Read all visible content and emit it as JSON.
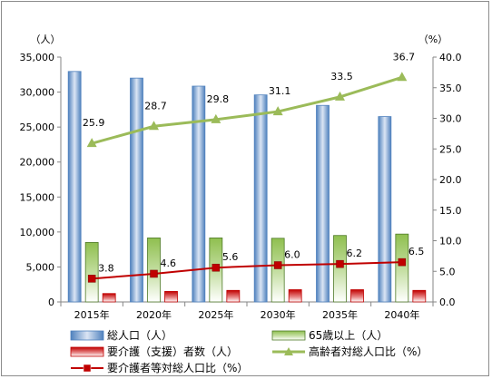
{
  "chart_data": {
    "type": "bar",
    "categories": [
      "2015年",
      "2020年",
      "2025年",
      "2030年",
      "2035年",
      "2040年"
    ],
    "y_left": {
      "unit_label": "（人）",
      "ticks": [
        "0",
        "5,000",
        "10,000",
        "15,000",
        "20,000",
        "25,000",
        "30,000",
        "35,000"
      ],
      "ylim": [
        0,
        35000
      ]
    },
    "y_right": {
      "unit_label": "（%）",
      "ticks": [
        "0.0",
        "5.0",
        "10.0",
        "15.0",
        "20.0",
        "25.0",
        "30.0",
        "35.0",
        "40.0"
      ],
      "ylim": [
        0,
        40
      ]
    },
    "grid": false,
    "legend_position": "bottom",
    "series": [
      {
        "name": "総人口（人）",
        "kind": "bar",
        "axis": "left",
        "color": "#4f81bd",
        "values": [
          32950,
          32000,
          30850,
          29600,
          28100,
          26500
        ]
      },
      {
        "name": "65歳以上（人）",
        "kind": "bar",
        "axis": "left",
        "color": "#9bbb59",
        "values": [
          8500,
          9150,
          9150,
          9100,
          9500,
          9700
        ]
      },
      {
        "name": "要介護（支援）者数（人）",
        "kind": "bar",
        "axis": "left",
        "color": "#c0504d",
        "values": [
          1200,
          1500,
          1650,
          1750,
          1750,
          1650
        ]
      },
      {
        "name": "高齢者対総人口比（%）",
        "kind": "line",
        "marker": "triangle",
        "axis": "right",
        "color": "#9bbb59",
        "values": [
          25.9,
          28.7,
          29.8,
          31.1,
          33.5,
          36.7
        ],
        "labels": [
          "25.9",
          "28.7",
          "29.8",
          "31.1",
          "33.5",
          "36.7"
        ]
      },
      {
        "name": "要介護者等対総人口比（%）",
        "kind": "line",
        "marker": "square",
        "axis": "right",
        "color": "#c00000",
        "values": [
          3.8,
          4.6,
          5.6,
          6.0,
          6.2,
          6.5
        ],
        "labels": [
          "3.8",
          "4.6",
          "5.6",
          "6.0",
          "6.2",
          "6.5"
        ]
      }
    ]
  }
}
